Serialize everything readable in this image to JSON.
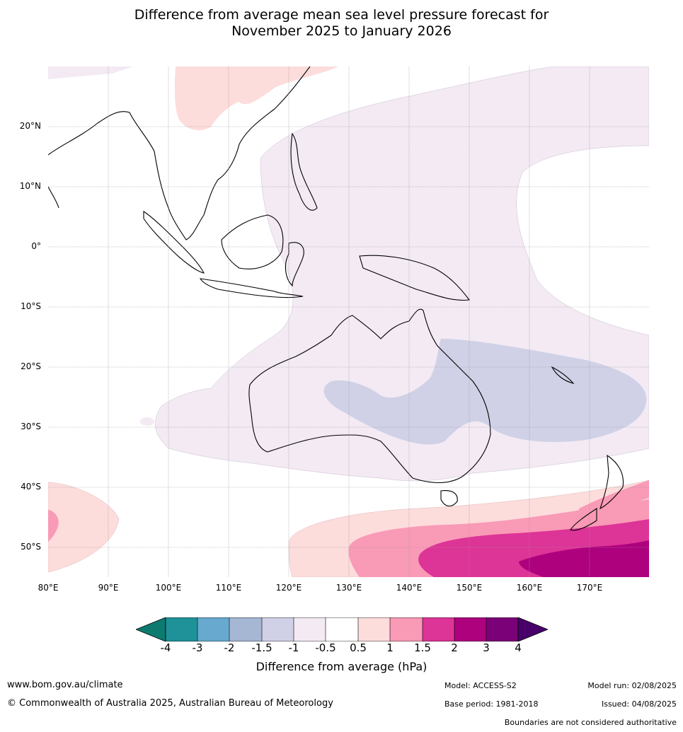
{
  "title": {
    "line1": "Difference from average mean sea level pressure forecast for",
    "line2": "November 2025 to January 2026"
  },
  "map": {
    "lat_labels": [
      "20°N",
      "10°N",
      "0°",
      "10°S",
      "20°S",
      "30°S",
      "40°S",
      "50°S"
    ],
    "lon_labels": [
      "80°E",
      "90°E",
      "100°E",
      "110°E",
      "120°E",
      "130°E",
      "140°E",
      "150°E",
      "160°E",
      "170°E"
    ]
  },
  "colorbar": {
    "title": "Difference from average (hPa)",
    "labels": [
      "-4",
      "-3",
      "-2",
      "-1.5",
      "-1",
      "-0.5",
      "0.5",
      "1",
      "1.5",
      "2",
      "3",
      "4"
    ],
    "colors": [
      "#0c7a6f",
      "#1f9299",
      "#67a9cf",
      "#a6b7d4",
      "#d0d1e6",
      "#f3eaf4",
      "#ffffff",
      "#fddcdc",
      "#f99ab6",
      "#dd3497",
      "#ae017e",
      "#7a0177",
      "#49006a"
    ]
  },
  "footer": {
    "website": "www.bom.gov.au/climate",
    "copyright": "© Commonwealth of Australia 2025, Australian Bureau of Meteorology",
    "model": "Model: ACCESS-S2",
    "base_period": "Base period: 1981-2018",
    "model_run": "Model run: 02/08/2025",
    "issued": "Issued: 04/08/2025",
    "disclaimer": "Boundaries are not considered authoritative"
  }
}
